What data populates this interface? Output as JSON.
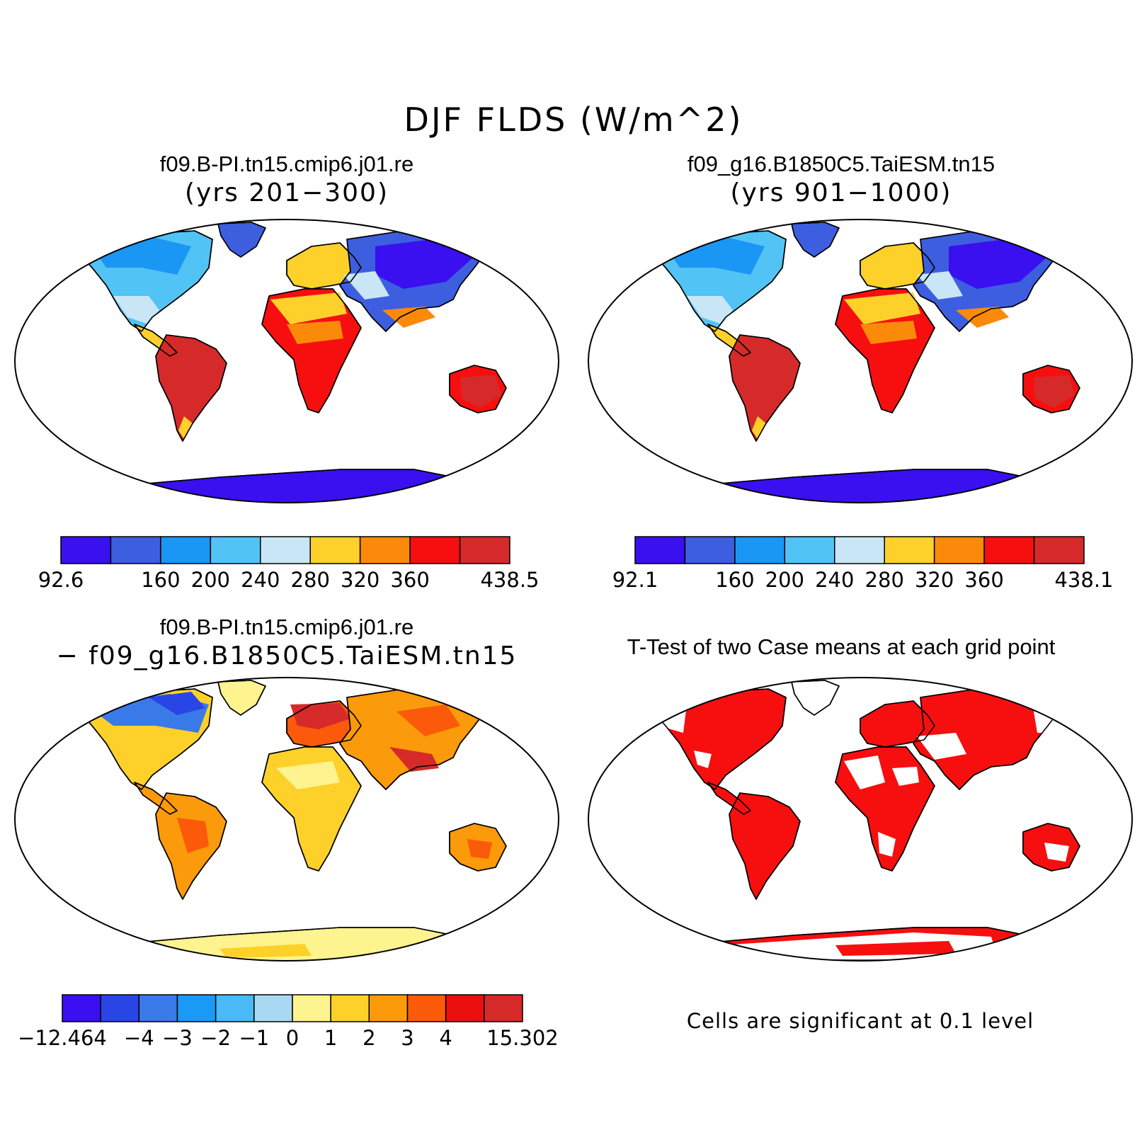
{
  "title": "DJF FLDS (W/m^2)",
  "panels": [
    {
      "id": "case1",
      "title": "f09.B-PI.tn15.cmip6.j01.re",
      "subtitle": "(yrs 201−300)",
      "colorbar": {
        "colors": [
          "#3a0ff0",
          "#3e5ee0",
          "#1a96f5",
          "#52c3f5",
          "#c8e6f5",
          "#fdd12a",
          "#fb8a0a",
          "#f70f0f",
          "#d62a2a"
        ],
        "labels": [
          "92.6",
          "160",
          "200",
          "240",
          "280",
          "320",
          "360",
          "438.5"
        ],
        "label_edges": [
          0,
          2,
          3,
          4,
          5,
          6,
          7,
          9
        ]
      }
    },
    {
      "id": "case2",
      "title": "f09_g16.B1850C5.TaiESM.tn15",
      "subtitle": "(yrs 901−1000)",
      "colorbar": {
        "colors": [
          "#3a0ff0",
          "#3e5ee0",
          "#1a96f5",
          "#52c3f5",
          "#c8e6f5",
          "#fdd12a",
          "#fb8a0a",
          "#f70f0f",
          "#d62a2a"
        ],
        "labels": [
          "92.1",
          "160",
          "200",
          "240",
          "280",
          "320",
          "360",
          "438.1"
        ],
        "label_edges": [
          0,
          2,
          3,
          4,
          5,
          6,
          7,
          9
        ]
      }
    },
    {
      "id": "diff",
      "title": "f09.B-PI.tn15.cmip6.j01.re",
      "subtitle": "− f09_g16.B1850C5.TaiESM.tn15",
      "colorbar": {
        "colors": [
          "#3a0ff0",
          "#2a45e6",
          "#3a7ae8",
          "#1a9af5",
          "#4ab9f5",
          "#a9d9f2",
          "#fdf38f",
          "#fdd12a",
          "#fb9a0a",
          "#fa5a0a",
          "#ec0f0f",
          "#d62a2a"
        ],
        "labels": [
          "−12.464",
          "−4",
          "−3",
          "−2",
          "−1",
          "0",
          "1",
          "2",
          "3",
          "4",
          "15.302"
        ],
        "label_edges": [
          0,
          2,
          3,
          4,
          5,
          6,
          7,
          8,
          9,
          10,
          12
        ]
      }
    },
    {
      "id": "ttest",
      "title": "T-Test of two Case means at each grid point",
      "note": "Cells are significant at 0.1 level"
    }
  ]
}
